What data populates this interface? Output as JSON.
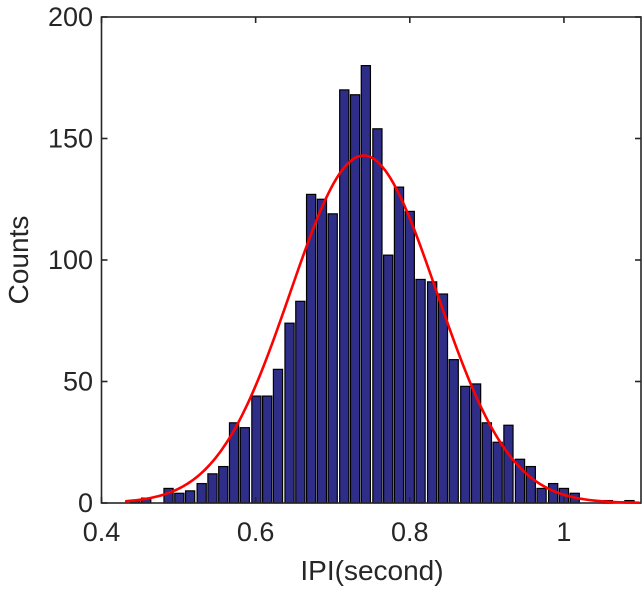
{
  "figure": {
    "background": "#ffffff"
  },
  "axes": {
    "axis_color": "#262626",
    "box": true,
    "grid": false,
    "x_tick_labels": [
      "0.4",
      "0.6",
      "0.8",
      "1"
    ],
    "y_tick_labels": [
      "0",
      "50",
      "100",
      "150",
      "200"
    ]
  },
  "chart_data": {
    "type": "bar",
    "subtype": "histogram-with-normal-fit",
    "title": "",
    "xlabel": "IPI(second)",
    "ylabel": "Counts",
    "xlim": [
      0.4,
      1.1
    ],
    "ylim": [
      0,
      200
    ],
    "x_ticks": [
      0.4,
      0.6,
      0.8,
      1
    ],
    "y_ticks": [
      0,
      50,
      100,
      150,
      200
    ],
    "legend": null,
    "bin_width": 0.01425,
    "bin_centers": [
      0.444,
      0.458,
      0.473,
      0.487,
      0.501,
      0.515,
      0.53,
      0.544,
      0.558,
      0.572,
      0.586,
      0.601,
      0.615,
      0.629,
      0.644,
      0.658,
      0.672,
      0.686,
      0.7,
      0.715,
      0.729,
      0.743,
      0.758,
      0.772,
      0.786,
      0.8,
      0.814,
      0.829,
      0.843,
      0.857,
      0.872,
      0.886,
      0.9,
      0.914,
      0.928,
      0.943,
      0.957,
      0.971,
      0.986,
      1.0,
      1.014,
      1.028,
      1.043,
      1.057,
      1.071,
      1.085
    ],
    "counts": [
      1,
      2,
      0,
      6,
      4,
      5,
      8,
      12,
      15,
      33,
      31,
      44,
      44,
      55,
      74,
      83,
      127,
      125,
      119,
      170,
      168,
      180,
      154,
      102,
      130,
      120,
      92,
      91,
      86,
      59,
      48,
      49,
      33,
      25,
      32,
      18,
      15,
      6,
      8,
      6,
      4,
      0,
      0,
      1,
      0,
      1
    ],
    "bar_fill": "#2e2d87",
    "bar_edge": "#000000",
    "fit_curve": {
      "type": "normal",
      "mu": 0.74,
      "sigma": 0.095,
      "peak": 143,
      "color": "#ff0000"
    }
  }
}
